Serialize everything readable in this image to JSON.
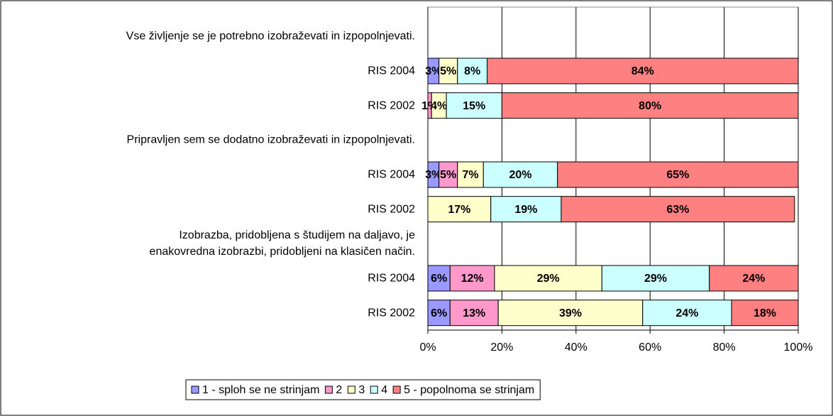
{
  "chart_data": {
    "type": "stacked_barh",
    "categories": [
      "Vse življenje se je potrebno izobraževati in izpopolnjevati.",
      "RIS 2004",
      "RIS 2002",
      "Pripravljen sem se dodatno izobraževati in izpopolnjevati.",
      "RIS 2004",
      "RIS 2002",
      "Izobrazba, pridobljena s študijem na daljavo, je\nenakovredna izobrazbi, pridobljeni na klasičen način.",
      "RIS 2004",
      "RIS 2002"
    ],
    "series": [
      {
        "name": "1 - sploh se ne strinjam",
        "color": "#9999ff",
        "values": [
          null,
          3,
          null,
          null,
          3,
          null,
          null,
          6,
          6
        ],
        "value_labels": [
          null,
          "3%",
          null,
          null,
          "3%",
          null,
          null,
          "6%",
          "6%"
        ]
      },
      {
        "name": "2",
        "color": "#ff99cc",
        "values": [
          null,
          null,
          1,
          null,
          5,
          null,
          null,
          12,
          13
        ],
        "value_labels": [
          null,
          null,
          "1%",
          null,
          "5%",
          null,
          null,
          "12%",
          "13%"
        ]
      },
      {
        "name": "3",
        "color": "#ffffcc",
        "values": [
          null,
          5,
          4,
          null,
          7,
          17,
          null,
          29,
          39
        ],
        "value_labels": [
          null,
          "5%",
          "4%",
          null,
          "7%",
          "17%",
          null,
          "29%",
          "39%"
        ]
      },
      {
        "name": "4",
        "color": "#ccffff",
        "values": [
          null,
          8,
          15,
          null,
          20,
          19,
          null,
          29,
          24
        ],
        "value_labels": [
          null,
          "8%",
          "15%",
          null,
          "20%",
          "19%",
          null,
          "29%",
          "24%"
        ]
      },
      {
        "name": "5 - popolnoma se strinjam",
        "color": "#ff8080",
        "values": [
          null,
          84,
          80,
          null,
          65,
          63,
          null,
          24,
          18
        ],
        "value_labels": [
          null,
          "84%",
          "80%",
          null,
          "65%",
          "63%",
          null,
          "24%",
          "18%"
        ]
      }
    ],
    "xlim": [
      0,
      100
    ],
    "xticks": [
      {
        "value": 0,
        "label": "0%"
      },
      {
        "value": 20,
        "label": "20%"
      },
      {
        "value": 40,
        "label": "40%"
      },
      {
        "value": 60,
        "label": "60%"
      },
      {
        "value": 80,
        "label": "80%"
      },
      {
        "value": 100,
        "label": "100%"
      }
    ],
    "grid": true,
    "legend": "bottom"
  }
}
